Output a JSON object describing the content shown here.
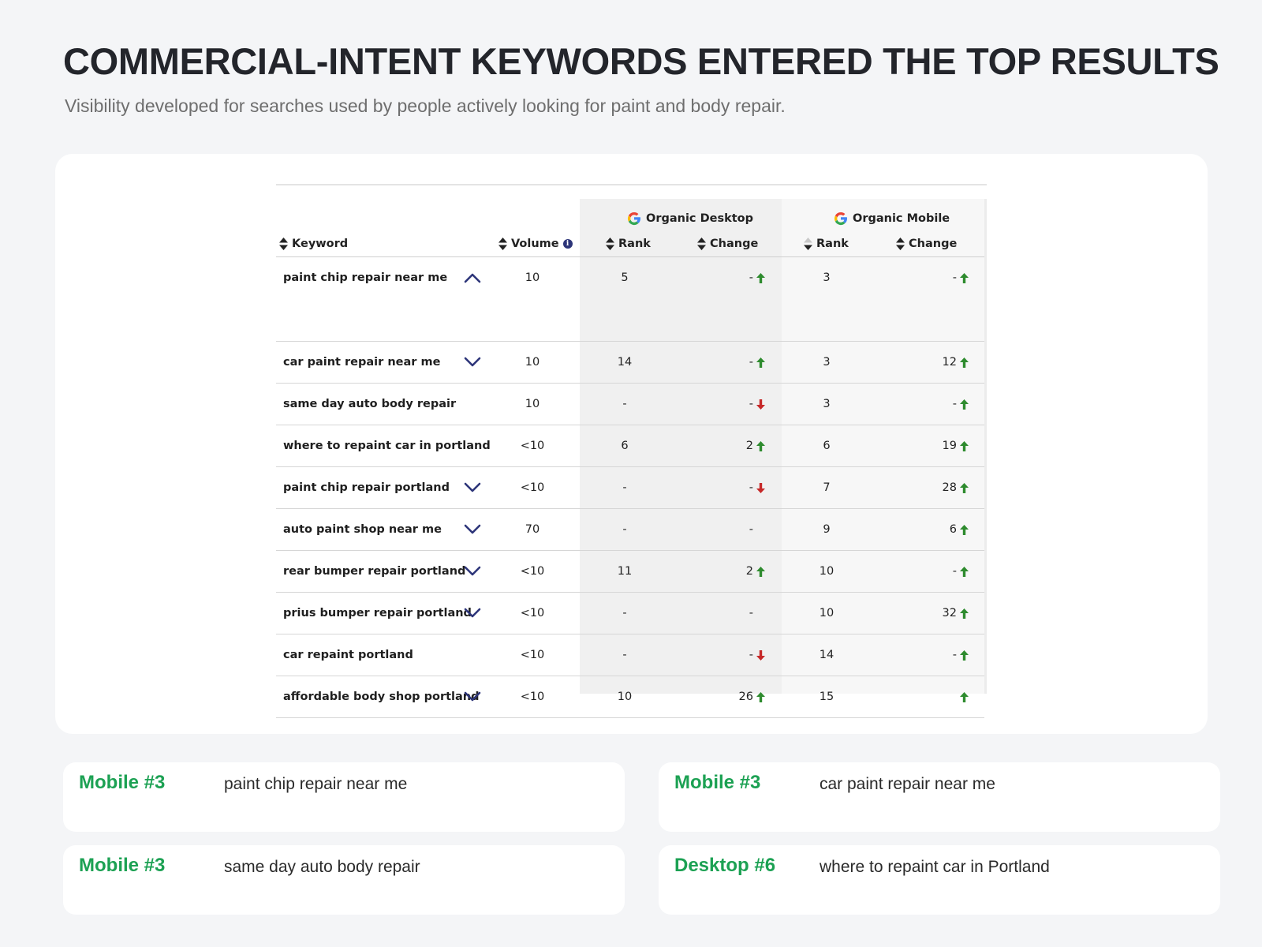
{
  "page": {
    "title": "COMMERCIAL-INTENT KEYWORDS ENTERED THE TOP RESULTS",
    "subtitle": "Visibility developed for searches used by people actively looking for paint and body repair."
  },
  "table": {
    "groups": {
      "desktop": "Organic Desktop",
      "mobile": "Organic Mobile"
    },
    "headers": {
      "keyword": "Keyword",
      "volume": "Volume",
      "desktop_rank": "Rank",
      "desktop_change": "Change",
      "mobile_rank": "Rank",
      "mobile_change": "Change"
    },
    "colors": {
      "up": "#2e8b2e",
      "down": "#c62828",
      "chevron": "#2d3579",
      "desktop_band": "#f0f0f0",
      "mobile_band": "#f7f7f7"
    },
    "rows": [
      {
        "keyword": "paint chip repair near me",
        "chevron": "up",
        "volume": "10",
        "desktop_rank": "5",
        "desktop_change": "-",
        "desktop_dir": "up",
        "mobile_rank": "3",
        "mobile_change": "-",
        "mobile_dir": "up"
      },
      {
        "keyword": "car paint repair near me",
        "chevron": "down",
        "volume": "10",
        "desktop_rank": "14",
        "desktop_change": "-",
        "desktop_dir": "up",
        "mobile_rank": "3",
        "mobile_change": "12",
        "mobile_dir": "up"
      },
      {
        "keyword": "same day auto body repair",
        "chevron": "",
        "volume": "10",
        "desktop_rank": "-",
        "desktop_change": "-",
        "desktop_dir": "down",
        "mobile_rank": "3",
        "mobile_change": "-",
        "mobile_dir": "up"
      },
      {
        "keyword": "where to repaint car in portland",
        "chevron": "",
        "volume": "<10",
        "desktop_rank": "6",
        "desktop_change": "2",
        "desktop_dir": "up",
        "mobile_rank": "6",
        "mobile_change": "19",
        "mobile_dir": "up"
      },
      {
        "keyword": "paint chip repair portland",
        "chevron": "down",
        "volume": "<10",
        "desktop_rank": "-",
        "desktop_change": "-",
        "desktop_dir": "down",
        "mobile_rank": "7",
        "mobile_change": "28",
        "mobile_dir": "up"
      },
      {
        "keyword": "auto paint shop near me",
        "chevron": "down",
        "volume": "70",
        "desktop_rank": "-",
        "desktop_change": "-",
        "desktop_dir": "",
        "mobile_rank": "9",
        "mobile_change": "6",
        "mobile_dir": "up"
      },
      {
        "keyword": "rear bumper repair portland",
        "chevron": "down",
        "volume": "<10",
        "desktop_rank": "11",
        "desktop_change": "2",
        "desktop_dir": "up",
        "mobile_rank": "10",
        "mobile_change": "-",
        "mobile_dir": "up"
      },
      {
        "keyword": "prius bumper repair portland",
        "chevron": "down",
        "volume": "<10",
        "desktop_rank": "-",
        "desktop_change": "-",
        "desktop_dir": "",
        "mobile_rank": "10",
        "mobile_change": "32",
        "mobile_dir": "up"
      },
      {
        "keyword": "car repaint portland",
        "chevron": "",
        "volume": "<10",
        "desktop_rank": "-",
        "desktop_change": "-",
        "desktop_dir": "down",
        "mobile_rank": "14",
        "mobile_change": "-",
        "mobile_dir": "up"
      },
      {
        "keyword": "affordable body shop portland",
        "chevron": "down",
        "volume": "<10",
        "desktop_rank": "10",
        "desktop_change": "26",
        "desktop_dir": "up",
        "mobile_rank": "15",
        "mobile_change": "",
        "mobile_dir": "up"
      }
    ]
  },
  "highlights": [
    {
      "position": "Mobile #3",
      "keyword": "paint chip repair near me"
    },
    {
      "position": "Mobile #3",
      "keyword": "car paint repair near me"
    },
    {
      "position": "Mobile #3",
      "keyword": "same day auto body repair"
    },
    {
      "position": "Desktop #6",
      "keyword": "where to repaint car in Portland"
    }
  ]
}
